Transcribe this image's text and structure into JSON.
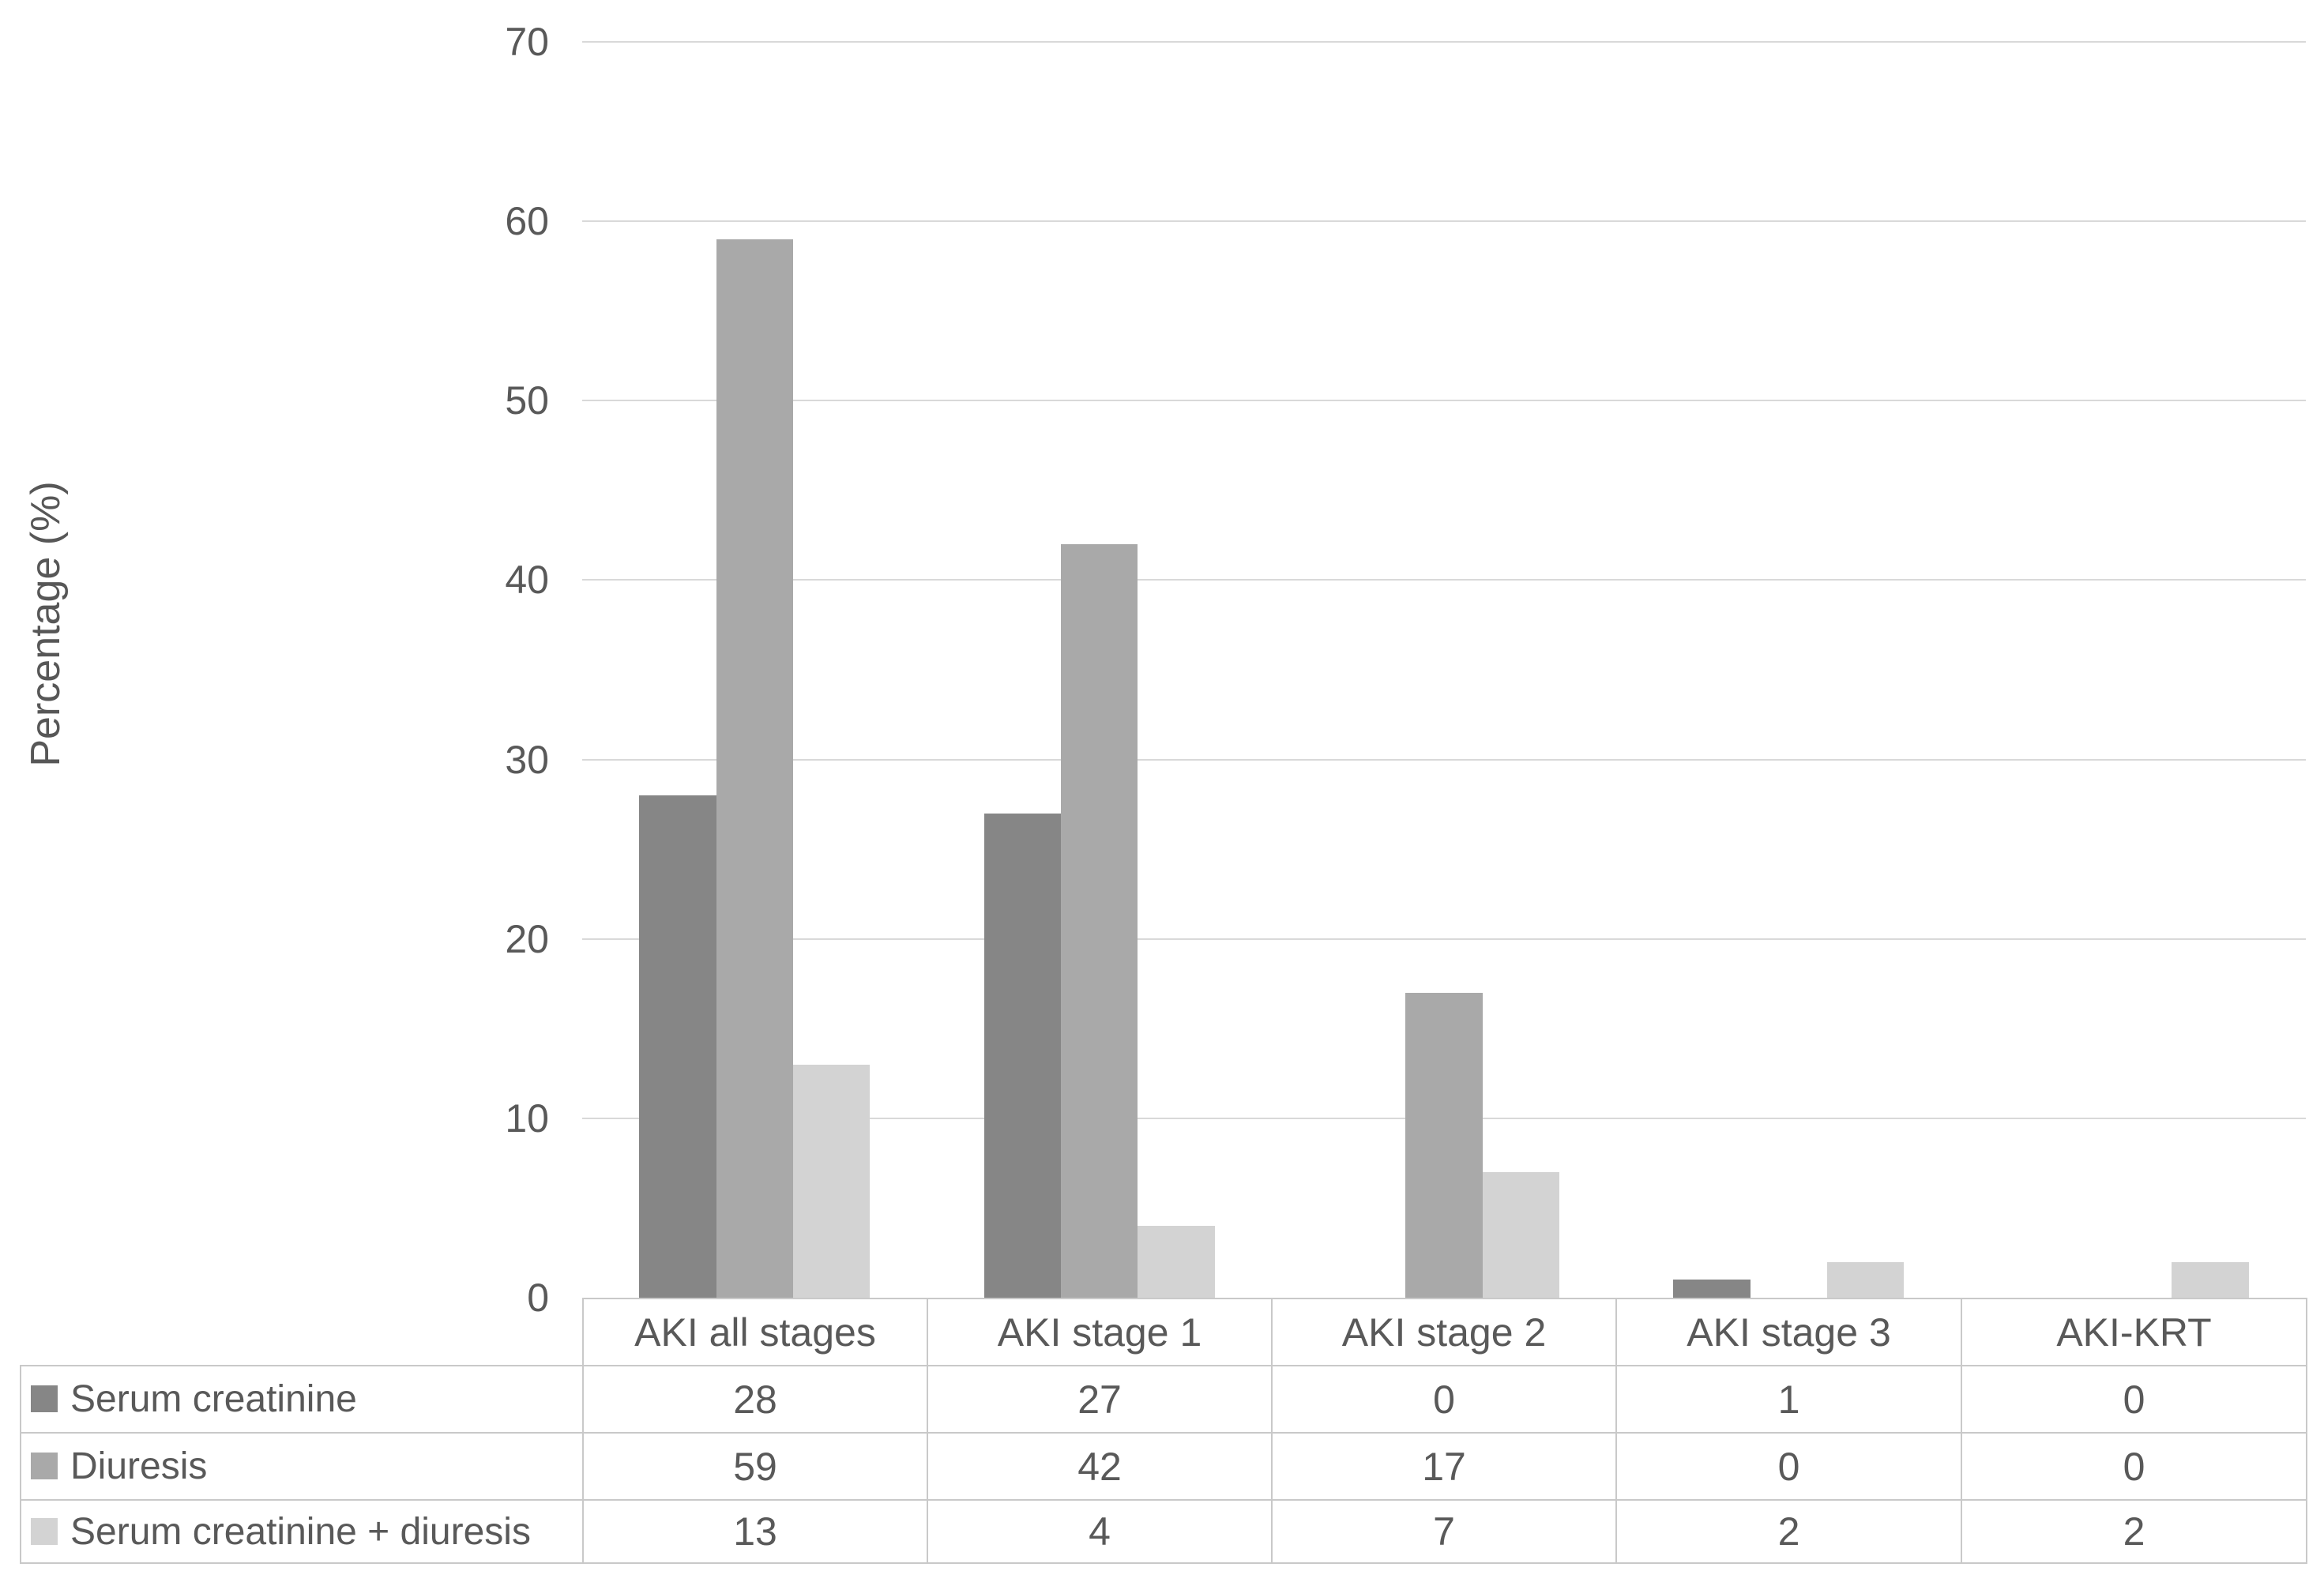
{
  "figure": {
    "background": "#ffffff",
    "text_color": "#595959",
    "gridline_color": "#d9d9d9",
    "table_border_color": "#c9c9c9"
  },
  "chart_data": {
    "type": "bar",
    "title": "",
    "xlabel": "",
    "ylabel": "Percentage (%)",
    "ylim": [
      0,
      70
    ],
    "yticks": [
      0,
      10,
      20,
      30,
      40,
      50,
      60,
      70
    ],
    "grid": true,
    "legend_position": "table-left",
    "categories": [
      "AKI all stages",
      "AKI stage 1",
      "AKI stage 2",
      "AKI stage 3",
      "AKI-KRT"
    ],
    "series": [
      {
        "name": "Serum creatinine",
        "color": "#868686",
        "values": [
          28,
          27,
          0,
          1,
          0
        ]
      },
      {
        "name": "Diuresis",
        "color": "#a9a9a9",
        "values": [
          59,
          42,
          17,
          0,
          0
        ]
      },
      {
        "name": "Serum creatinine + diuresis",
        "color": "#d3d3d3",
        "values": [
          13,
          4,
          7,
          2,
          2
        ]
      }
    ]
  }
}
